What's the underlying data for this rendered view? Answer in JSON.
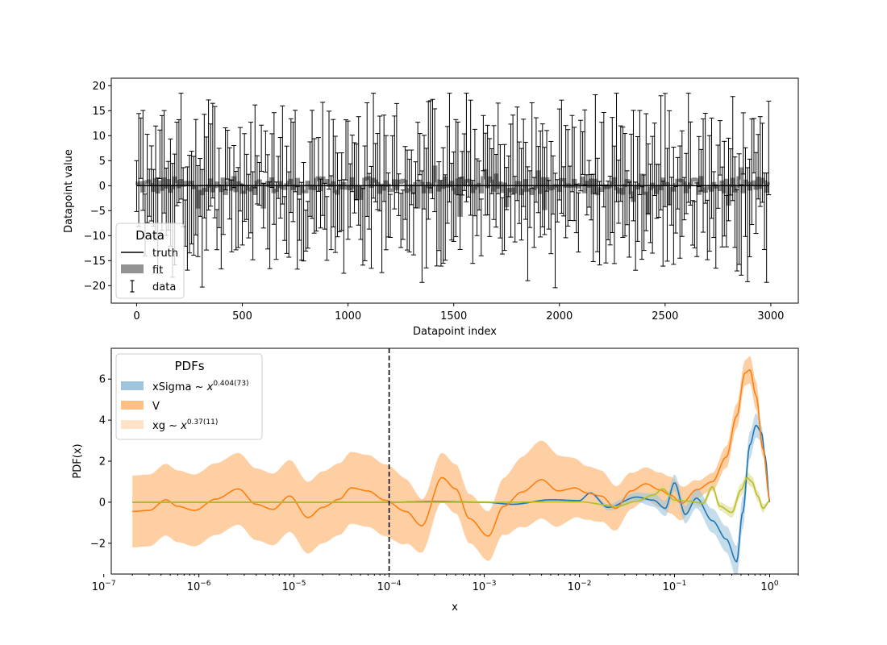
{
  "chart_data": [
    {
      "type": "errorbar",
      "xlabel": "Datapoint index",
      "ylabel": "Datapoint value",
      "xlim": [
        -120,
        3130
      ],
      "ylim": [
        -23.5,
        21.5
      ],
      "xticks": [
        0,
        500,
        1000,
        1500,
        2000,
        2500,
        3000
      ],
      "yticks": [
        -20,
        -15,
        -10,
        -5,
        0,
        5,
        10,
        15,
        20
      ],
      "legend": {
        "title": "Data",
        "placement": "lower-left",
        "entries": [
          {
            "label": "truth",
            "style": "line",
            "color": "#000000"
          },
          {
            "label": "fit",
            "style": "patch",
            "color": "#808080"
          },
          {
            "label": "data",
            "style": "errorbar",
            "color": "#000000"
          }
        ]
      },
      "n_points": 300,
      "x_range": [
        0,
        2990
      ],
      "series": [
        {
          "name": "truth",
          "description": "constant zero line",
          "value": 0
        },
        {
          "name": "fit",
          "range": [
            -7,
            5
          ]
        },
        {
          "name": "data",
          "point_range": [
            -9,
            9
          ],
          "error_bar_extent": [
            -21,
            18.5
          ]
        }
      ]
    },
    {
      "type": "line",
      "xscale": "log",
      "xlabel": "x",
      "ylabel": "PDF(x)",
      "xlim": [
        1.2e-07,
        2.0
      ],
      "ylim": [
        -3.5,
        7.5
      ],
      "xtick_labels": [
        "10",
        "10",
        "10",
        "10",
        "10",
        "10",
        "10",
        "10"
      ],
      "xtick_exponents": [
        "−7",
        "−6",
        "−5",
        "−4",
        "−3",
        "−2",
        "−1",
        "0"
      ],
      "xtick_values": [
        1e-07,
        1e-06,
        1e-05,
        0.0001,
        0.001,
        0.01,
        0.1,
        1
      ],
      "yticks": [
        -2,
        0,
        2,
        4,
        6
      ],
      "vline": {
        "x": 0.0001,
        "style": "dashed",
        "color": "#000000"
      },
      "legend": {
        "title": "PDFs",
        "placement": "upper-left",
        "entries": [
          {
            "label": "xSigma",
            "math_base": "~ x",
            "exponent": "0.404(73)",
            "color": "#9ec4de"
          },
          {
            "label": "V",
            "math_base": "",
            "exponent": "",
            "color": "#ffbf85"
          },
          {
            "label": "xg",
            "math_base": "~ x",
            "exponent": "0.37(11)",
            "color": "#ffe2c8"
          }
        ]
      },
      "series": [
        {
          "name": "xSigma",
          "line_color": "#1f77b4",
          "band_color": "#9ec4de",
          "points": [
            [
              2e-07,
              0
            ],
            [
              0.0001,
              0
            ],
            [
              0.0003,
              0.03
            ],
            [
              0.001,
              0
            ],
            [
              0.002,
              -0.1
            ],
            [
              0.005,
              0.12
            ],
            [
              0.01,
              0.08
            ],
            [
              0.013,
              0.45
            ],
            [
              0.02,
              -0.25
            ],
            [
              0.04,
              0.25
            ],
            [
              0.06,
              0.1
            ],
            [
              0.08,
              -0.3
            ],
            [
              0.1,
              0.95
            ],
            [
              0.13,
              -0.6
            ],
            [
              0.17,
              0.2
            ],
            [
              0.25,
              -0.9
            ],
            [
              0.35,
              -1.8
            ],
            [
              0.45,
              -2.9
            ],
            [
              0.52,
              -0.5
            ],
            [
              0.62,
              2.8
            ],
            [
              0.72,
              3.75
            ],
            [
              0.82,
              3.4
            ],
            [
              0.9,
              2.2
            ],
            [
              1,
              0
            ]
          ],
          "band_halfwidth": [
            [
              2e-07,
              0.02
            ],
            [
              0.01,
              0.05
            ],
            [
              0.03,
              0.2
            ],
            [
              0.1,
              0.4
            ],
            [
              0.3,
              0.6
            ],
            [
              0.5,
              0.8
            ],
            [
              0.7,
              0.6
            ],
            [
              1,
              0.05
            ]
          ]
        },
        {
          "name": "V",
          "line_color": "#ff7f0e",
          "band_color": "#ffbf85",
          "points": [
            [
              2e-07,
              -0.45
            ],
            [
              3e-07,
              -0.4
            ],
            [
              4.5e-07,
              0.12
            ],
            [
              6e-07,
              -0.2
            ],
            [
              9e-07,
              -0.4
            ],
            [
              1.5e-06,
              0.15
            ],
            [
              2.6e-06,
              0.65
            ],
            [
              4e-06,
              -0.1
            ],
            [
              6e-06,
              -0.35
            ],
            [
              9e-06,
              0.3
            ],
            [
              1.4e-05,
              -0.75
            ],
            [
              2e-05,
              -0.25
            ],
            [
              3e-05,
              0.15
            ],
            [
              4e-05,
              0.7
            ],
            [
              6e-05,
              0.55
            ],
            [
              9e-05,
              0.1
            ],
            [
              0.00015,
              -0.45
            ],
            [
              0.00022,
              -1.15
            ],
            [
              0.00036,
              1.2
            ],
            [
              0.0005,
              0.65
            ],
            [
              0.0007,
              -0.8
            ],
            [
              0.0011,
              -1.65
            ],
            [
              0.0016,
              -0.2
            ],
            [
              0.0025,
              0.5
            ],
            [
              0.004,
              1.1
            ],
            [
              0.006,
              0.55
            ],
            [
              0.009,
              0.7
            ],
            [
              0.012,
              0.45
            ],
            [
              0.017,
              0.3
            ],
            [
              0.024,
              -0.3
            ],
            [
              0.035,
              0.55
            ],
            [
              0.05,
              0.9
            ],
            [
              0.07,
              0.6
            ],
            [
              0.09,
              0.35
            ],
            [
              0.12,
              -0.05
            ],
            [
              0.17,
              0.6
            ],
            [
              0.25,
              1.0
            ],
            [
              0.35,
              2.2
            ],
            [
              0.45,
              4.2
            ],
            [
              0.55,
              6.3
            ],
            [
              0.62,
              6.45
            ],
            [
              0.72,
              5.2
            ],
            [
              0.85,
              2.6
            ],
            [
              1,
              0.1
            ]
          ],
          "band_halfwidth": [
            [
              2e-07,
              1.75
            ],
            [
              0.0001,
              1.75
            ],
            [
              0.0003,
              1.2
            ],
            [
              0.001,
              1.2
            ],
            [
              0.004,
              1.9
            ],
            [
              0.013,
              1.3
            ],
            [
              0.05,
              0.8
            ],
            [
              0.1,
              0.9
            ],
            [
              0.2,
              0.4
            ],
            [
              0.5,
              0.6
            ],
            [
              0.7,
              0.7
            ],
            [
              1,
              0.1
            ]
          ]
        },
        {
          "name": "xg",
          "line_color": "#bcbd22",
          "band_color": "#dbdb8d",
          "points": [
            [
              2e-07,
              0
            ],
            [
              0.0001,
              0
            ],
            [
              0.001,
              0
            ],
            [
              0.01,
              0.02
            ],
            [
              0.025,
              -0.2
            ],
            [
              0.04,
              0.05
            ],
            [
              0.06,
              0.35
            ],
            [
              0.075,
              0.65
            ],
            [
              0.1,
              0.1
            ],
            [
              0.14,
              0.05
            ],
            [
              0.2,
              -0.05
            ],
            [
              0.25,
              0.75
            ],
            [
              0.3,
              -0.2
            ],
            [
              0.4,
              -0.5
            ],
            [
              0.5,
              0.6
            ],
            [
              0.58,
              1.2
            ],
            [
              0.65,
              1.0
            ],
            [
              0.75,
              0.3
            ],
            [
              0.85,
              -0.3
            ],
            [
              1,
              0.05
            ]
          ],
          "band_halfwidth": [
            [
              2e-07,
              0.02
            ],
            [
              0.01,
              0.05
            ],
            [
              0.1,
              0.15
            ],
            [
              0.3,
              0.2
            ],
            [
              0.5,
              0.3
            ],
            [
              0.8,
              0.25
            ],
            [
              1,
              0.05
            ]
          ]
        }
      ]
    }
  ]
}
